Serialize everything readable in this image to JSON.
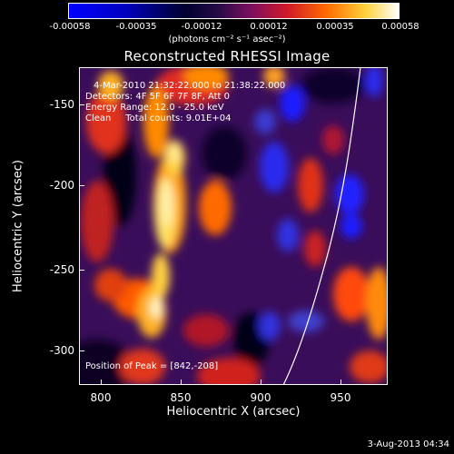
{
  "colorbar": {
    "tick_labels": [
      "-0.00058",
      "-0.00035",
      "-0.00012",
      "0.00012",
      "0.00035",
      "0.00058"
    ],
    "unit_label": "(photons cm⁻² s⁻¹ asec⁻²)",
    "colors": [
      "#0000ff",
      "#000070",
      "#000000",
      "#4b1f8a",
      "#c8152e",
      "#ff7a00",
      "#ffe060",
      "#ffffff"
    ]
  },
  "title": "Reconstructed RHESSI Image",
  "info": {
    "time_range": "4-Mar-2010 21:32:22.000 to 21:38:22.000",
    "detectors": "Detectors: 4F 5F 6F 7F 8F, Att 0",
    "energy_range": "Energy Range: 12.0 - 25.0 keV",
    "clean": "Clean     Total counts: 9.01E+04",
    "peak": "Position of Peak = [842,-208]"
  },
  "axes": {
    "x_label": "Heliocentric X (arcsec)",
    "y_label": "Heliocentric Y (arcsec)",
    "x_ticks": [
      "800",
      "850",
      "900",
      "950"
    ],
    "y_ticks": [
      "-150",
      "-200",
      "-250",
      "-300"
    ],
    "x_range": [
      782,
      975
    ],
    "y_range": [
      -322,
      -124
    ]
  },
  "timestamp": "3-Aug-2013 04:34"
}
